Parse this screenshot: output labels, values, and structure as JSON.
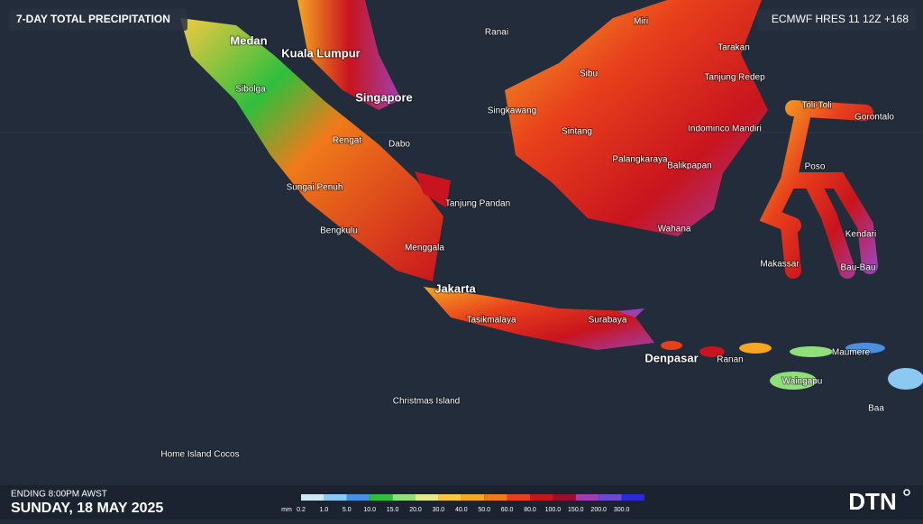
{
  "header": {
    "title": "7-DAY TOTAL PRECIPITATION",
    "model": "ECMWF HRES 11 12Z +168"
  },
  "places": [
    "Medan",
    "Kuala Lumpur",
    "Sibolga",
    "Singapore",
    "Rengat",
    "Dabo",
    "Sungai Penuh",
    "Bengkulu",
    "Menggala",
    "Tanjung Pandan",
    "Jakarta",
    "Tasikmalaya",
    "Surabaya",
    "Denpasar",
    "Ranai",
    "Miri",
    "Sibu",
    "Singkawang",
    "Sintang",
    "Palangkaraya",
    "Tarakan",
    "Tanjung Redep",
    "Indominco Mandiri",
    "Balikpapan",
    "Wahana",
    "Toli-Toli",
    "Gorontalo",
    "Poso",
    "Kendari",
    "Makassar",
    "Bau-Bau",
    "Ranan",
    "Waingapu",
    "Maumere",
    "Baa",
    "Christmas Island",
    "Home Island Cocos"
  ],
  "footer": {
    "ending": "ENDING 8:00PM AWST",
    "date": "SUNDAY, 18 MAY 2025",
    "logo": "DTN"
  },
  "legend": {
    "unit": "mm",
    "items": [
      {
        "label": "0.2",
        "color": "#cde8f7"
      },
      {
        "label": "1.0",
        "color": "#8cc9f2"
      },
      {
        "label": "5.0",
        "color": "#4a8fe0"
      },
      {
        "label": "10.0",
        "color": "#2fbf3d"
      },
      {
        "label": "15.0",
        "color": "#8fe07a"
      },
      {
        "label": "20.0",
        "color": "#e6e88a"
      },
      {
        "label": "30.0",
        "color": "#f5c842"
      },
      {
        "label": "40.0",
        "color": "#f5a623"
      },
      {
        "label": "50.0",
        "color": "#f07a1a"
      },
      {
        "label": "60.0",
        "color": "#e8401c"
      },
      {
        "label": "80.0",
        "color": "#c8141e"
      },
      {
        "label": "100.0",
        "color": "#9c0f2a"
      },
      {
        "label": "150.0",
        "color": "#a040b0"
      },
      {
        "label": "200.0",
        "color": "#6a4ad0"
      },
      {
        "label": "300.0",
        "color": "#2a2ad8"
      }
    ]
  }
}
